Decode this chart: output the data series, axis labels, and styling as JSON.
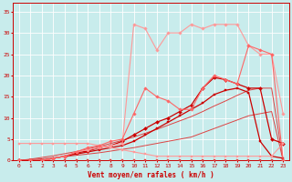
{
  "title": "",
  "xlabel": "Vent moyen/en rafales ( km/h )",
  "ylabel": "",
  "xlim": [
    -0.5,
    23.5
  ],
  "ylim": [
    0,
    37
  ],
  "xticks": [
    0,
    1,
    2,
    3,
    4,
    5,
    6,
    7,
    8,
    9,
    10,
    11,
    12,
    13,
    14,
    15,
    16,
    17,
    18,
    19,
    20,
    21,
    22,
    23
  ],
  "yticks": [
    0,
    5,
    10,
    15,
    20,
    25,
    30,
    35
  ],
  "background_color": "#c8ecec",
  "grid_color": "#ffffff",
  "series": [
    {
      "x": [
        0,
        1,
        2,
        3,
        4,
        5,
        6,
        7,
        8,
        9,
        10,
        11,
        12,
        13,
        14,
        15,
        16,
        17,
        18,
        19,
        20,
        21,
        22,
        23
      ],
      "y": [
        0,
        0,
        0,
        0,
        0,
        0,
        0,
        0,
        0,
        0,
        0,
        0,
        0,
        0,
        0,
        0,
        0,
        0,
        0,
        0,
        0,
        0,
        0,
        0
      ],
      "color": "#dd4444",
      "lw": 0.7,
      "marker": "s",
      "markersize": 1.5
    },
    {
      "x": [
        0,
        1,
        2,
        3,
        4,
        5,
        6,
        7,
        8,
        9,
        10,
        11,
        12,
        13,
        14,
        15,
        16,
        17,
        18,
        19,
        20,
        21,
        22,
        23
      ],
      "y": [
        0,
        0.2,
        0.4,
        0.6,
        0.9,
        1.2,
        1.5,
        1.8,
        2.2,
        2.6,
        3.0,
        3.5,
        4.0,
        4.5,
        5.0,
        5.5,
        6.5,
        7.5,
        8.5,
        9.5,
        10.5,
        11.0,
        11.5,
        0
      ],
      "color": "#dd4444",
      "lw": 0.7,
      "marker": null,
      "markersize": 0
    },
    {
      "x": [
        0,
        1,
        2,
        3,
        4,
        5,
        6,
        7,
        8,
        9,
        10,
        11,
        12,
        13,
        14,
        15,
        16,
        17,
        18,
        19,
        20,
        21,
        22,
        23
      ],
      "y": [
        0,
        0.3,
        0.7,
        1.1,
        1.6,
        2.1,
        2.7,
        3.3,
        4.0,
        4.7,
        5.5,
        6.4,
        7.3,
        8.3,
        9.3,
        10.3,
        11.5,
        12.8,
        14.0,
        15.3,
        16.5,
        17.0,
        17.0,
        0
      ],
      "color": "#dd4444",
      "lw": 0.7,
      "marker": null,
      "markersize": 0
    },
    {
      "x": [
        0,
        1,
        2,
        3,
        4,
        5,
        6,
        7,
        8,
        9,
        10,
        11,
        12,
        13,
        14,
        15,
        16,
        17,
        18,
        19,
        20,
        21,
        22,
        23
      ],
      "y": [
        0,
        0,
        0,
        0.5,
        1.0,
        1.5,
        2.0,
        2.5,
        3.0,
        3.5,
        4.5,
        6.0,
        7.5,
        9.0,
        10.5,
        12.0,
        13.5,
        15.5,
        16.5,
        17.0,
        16.0,
        4.5,
        1.0,
        0.5
      ],
      "color": "#cc0000",
      "lw": 0.9,
      "marker": "s",
      "markersize": 2.0
    },
    {
      "x": [
        0,
        1,
        2,
        3,
        4,
        5,
        6,
        7,
        8,
        9,
        10,
        11,
        12,
        13,
        14,
        15,
        16,
        17,
        18,
        19,
        20,
        21,
        22,
        23
      ],
      "y": [
        0,
        0,
        0,
        0.5,
        1.0,
        1.8,
        2.2,
        3.0,
        3.5,
        4.5,
        6.0,
        7.5,
        9.0,
        10.0,
        11.5,
        13.0,
        17.0,
        19.5,
        19.0,
        18.0,
        17.0,
        17.0,
        5.0,
        4.0
      ],
      "color": "#cc0000",
      "lw": 0.9,
      "marker": "D",
      "markersize": 2.0
    },
    {
      "x": [
        0,
        1,
        2,
        3,
        4,
        5,
        6,
        7,
        8,
        9,
        10,
        11,
        12,
        13,
        14,
        15,
        16,
        17,
        18,
        19,
        20,
        21,
        22,
        23
      ],
      "y": [
        4,
        4,
        4,
        4,
        4,
        4,
        4,
        3.5,
        3.0,
        2.5,
        2.0,
        1.5,
        1.0,
        1.0,
        1.0,
        1.0,
        1.0,
        1.0,
        1.0,
        1.0,
        1.0,
        1.0,
        1.0,
        4.0
      ],
      "color": "#ff9999",
      "lw": 0.8,
      "marker": "s",
      "markersize": 1.8
    },
    {
      "x": [
        0,
        1,
        2,
        3,
        4,
        5,
        6,
        7,
        8,
        9,
        10,
        11,
        12,
        13,
        14,
        15,
        16,
        17,
        18,
        19,
        20,
        21,
        22,
        23
      ],
      "y": [
        0,
        0,
        0,
        0.5,
        1.0,
        2.0,
        2.5,
        3.0,
        3.5,
        4.0,
        32,
        31,
        26,
        30,
        30,
        32,
        31,
        32,
        32,
        32,
        27,
        25,
        25,
        11
      ],
      "color": "#ff9999",
      "lw": 0.8,
      "marker": "D",
      "markersize": 1.8
    },
    {
      "x": [
        0,
        1,
        2,
        3,
        4,
        5,
        6,
        7,
        8,
        9,
        10,
        11,
        12,
        13,
        14,
        15,
        16,
        17,
        18,
        19,
        20,
        21,
        22,
        23
      ],
      "y": [
        0,
        0,
        0,
        0.5,
        1.0,
        2.0,
        3.0,
        3.5,
        4.5,
        5.0,
        11,
        17,
        15,
        14,
        12,
        12,
        17,
        20,
        19,
        18,
        27,
        26,
        25,
        0
      ],
      "color": "#ff6666",
      "lw": 0.8,
      "marker": "D",
      "markersize": 1.8
    }
  ]
}
